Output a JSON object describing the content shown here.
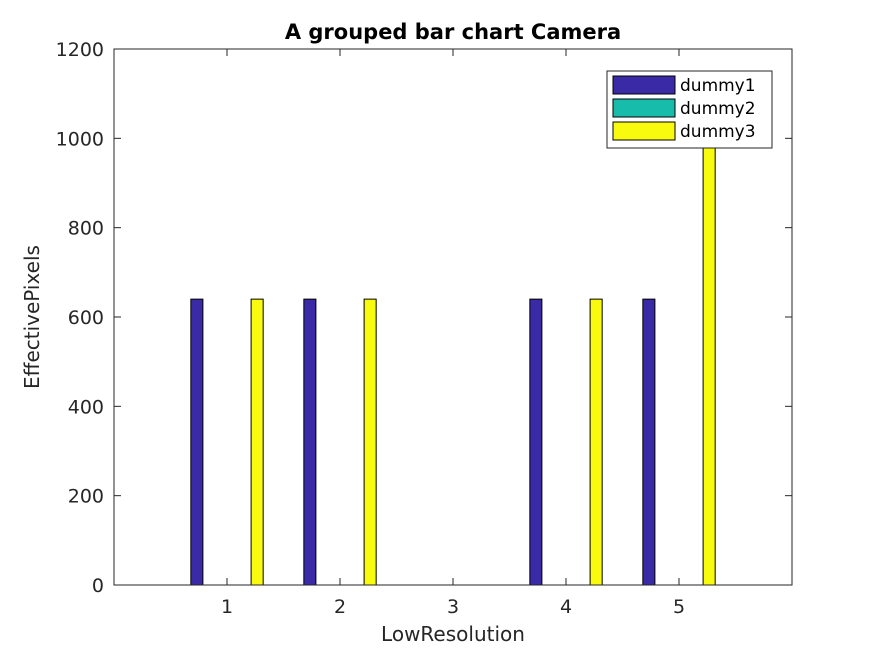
{
  "chart_data": {
    "type": "bar",
    "title": "A grouped bar chart Camera",
    "xlabel": "LowResolution",
    "ylabel": "EffectivePixels",
    "categories": [
      "1",
      "2",
      "3",
      "4",
      "5"
    ],
    "series": [
      {
        "name": "dummy1",
        "values": [
          640,
          640,
          0,
          640,
          640
        ],
        "color": "#3a2aa6"
      },
      {
        "name": "dummy2",
        "values": [
          0,
          0,
          0,
          0,
          0
        ],
        "color": "#17bcab"
      },
      {
        "name": "dummy3",
        "values": [
          640,
          640,
          0,
          640,
          1024
        ],
        "color": "#f9fb0e"
      }
    ],
    "ylim": [
      0,
      1200
    ],
    "xlim": [
      0,
      6
    ],
    "yticks": [
      0,
      200,
      400,
      600,
      800,
      1000,
      1200
    ],
    "grid": false,
    "legend_position": "top-right"
  }
}
